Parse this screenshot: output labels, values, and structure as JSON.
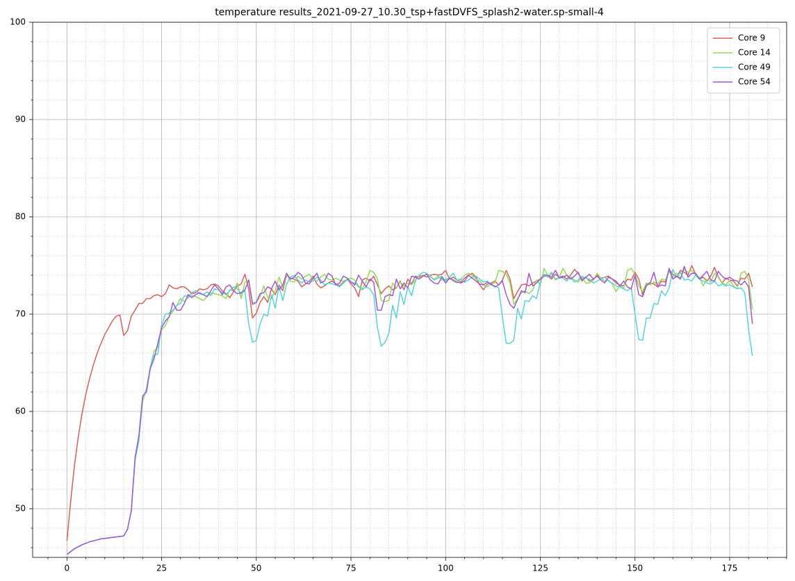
{
  "chart_data": {
    "type": "line",
    "title": "temperature results_2021-09-27_10.30_tsp+fastDVFS_splash2-water.sp-small-4",
    "xlim": [
      -9.05,
      190.05
    ],
    "ylim": [
      45,
      100
    ],
    "xticks": [
      0,
      25,
      50,
      75,
      100,
      125,
      150,
      175
    ],
    "yticks": [
      50,
      60,
      70,
      80,
      90,
      100
    ],
    "xminorticks": [
      -5,
      5,
      10,
      15,
      20,
      30,
      35,
      40,
      45,
      55,
      60,
      65,
      70,
      80,
      85,
      90,
      95,
      105,
      110,
      115,
      120,
      130,
      135,
      140,
      145,
      155,
      160,
      165,
      170,
      180,
      185,
      190
    ],
    "yminorticks": [
      46,
      48,
      52,
      54,
      56,
      58,
      62,
      64,
      66,
      68,
      72,
      74,
      76,
      78,
      82,
      84,
      86,
      88,
      92,
      94,
      96,
      98
    ],
    "grid": true,
    "legend": "upper right",
    "x": [
      0,
      1,
      2,
      3,
      4,
      5,
      6,
      7,
      8,
      9,
      10,
      11,
      12,
      13,
      14,
      15,
      16,
      17,
      18,
      19,
      20,
      21,
      22,
      23,
      24,
      25,
      26,
      27,
      28,
      29,
      30,
      31,
      32,
      33,
      34,
      35,
      36,
      37,
      38,
      39,
      40,
      41,
      42,
      43,
      44,
      45,
      46,
      47,
      48,
      49,
      50,
      51,
      52,
      53,
      54,
      55,
      56,
      57,
      58,
      59,
      60,
      61,
      62,
      63,
      64,
      65,
      66,
      67,
      68,
      69,
      70,
      71,
      72,
      73,
      74,
      75,
      76,
      77,
      78,
      79,
      80,
      81,
      82,
      83,
      84,
      85,
      86,
      87,
      88,
      89,
      90,
      91,
      92,
      93,
      94,
      95,
      96,
      97,
      98,
      99,
      100,
      101,
      102,
      103,
      104,
      105,
      106,
      107,
      108,
      109,
      110,
      111,
      112,
      113,
      114,
      115,
      116,
      117,
      118,
      119,
      120,
      121,
      122,
      123,
      124,
      125,
      126,
      127,
      128,
      129,
      130,
      131,
      132,
      133,
      134,
      135,
      136,
      137,
      138,
      139,
      140,
      141,
      142,
      143,
      144,
      145,
      146,
      147,
      148,
      149,
      150,
      151,
      152,
      153,
      154,
      155,
      156,
      157,
      158,
      159,
      160,
      161,
      162,
      163,
      164,
      165,
      166,
      167,
      168,
      169,
      170,
      171,
      172,
      173,
      174,
      175,
      176,
      177,
      178,
      179,
      180,
      181
    ],
    "series": [
      {
        "name": "Core 9",
        "color": "#db5f57",
        "values": [
          46.7,
          50.8,
          54.5,
          57.4,
          59.8,
          61.8,
          63.4,
          64.8,
          66.0,
          67.0,
          67.9,
          68.6,
          69.3,
          69.8,
          69.9,
          67.8,
          68.3,
          69.8,
          70.4,
          71.1,
          71.1,
          71.6,
          71.6,
          71.9,
          72.0,
          71.8,
          72.1,
          73.0,
          72.7,
          72.6,
          72.8,
          72.8,
          72.5,
          72.1,
          72.2,
          72.6,
          72.5,
          72.6,
          73.0,
          73.1,
          72.9,
          72.4,
          72.1,
          71.7,
          72.3,
          72.9,
          73.1,
          74.1,
          72.6,
          69.6,
          70.1,
          71.2,
          71.8,
          71.2,
          72.6,
          72.0,
          73.0,
          72.4,
          74.0,
          73.7,
          73.6,
          73.4,
          72.8,
          73.1,
          73.4,
          73.9,
          73.1,
          72.7,
          72.9,
          73.2,
          73.4,
          73.1,
          72.9,
          73.3,
          73.6,
          73.1,
          72.7,
          71.8,
          73.5,
          73.7,
          73.4,
          73.9,
          73.0,
          72.1,
          72.6,
          72.9,
          72.5,
          72.7,
          73.4,
          72.5,
          73.6,
          73.1,
          73.9,
          73.8,
          74.0,
          73.8,
          74.0,
          74.1,
          74.0,
          74.1,
          74.5,
          73.6,
          73.8,
          73.5,
          73.3,
          73.7,
          74.0,
          74.2,
          73.8,
          73.0,
          72.5,
          73.1,
          73.2,
          73.4,
          73.0,
          73.5,
          74.5,
          73.6,
          71.6,
          72.3,
          73.0,
          73.1,
          72.9,
          73.2,
          73.4,
          73.6,
          74.1,
          73.9,
          73.6,
          74.1,
          73.8,
          73.9,
          73.6,
          74.0,
          74.6,
          74.2,
          73.6,
          73.8,
          73.4,
          73.6,
          74.0,
          73.7,
          73.8,
          73.9,
          73.6,
          73.2,
          73.0,
          72.9,
          73.6,
          73.5,
          74.3,
          73.6,
          72.0,
          73.1,
          73.2,
          73.1,
          72.8,
          73.4,
          73.3,
          74.6,
          74.1,
          73.8,
          74.5,
          74.3,
          74.0,
          75.0,
          74.1,
          73.6,
          73.8,
          73.4,
          73.9,
          74.8,
          73.8,
          73.2,
          73.7,
          73.5,
          73.4,
          72.9,
          73.7,
          73.6,
          74.2,
          72.8
        ]
      },
      {
        "name": "Core 14",
        "color": "#91db57",
        "values": [
          45.3,
          45.6,
          45.9,
          46.1,
          46.3,
          46.45,
          46.6,
          46.7,
          46.8,
          46.9,
          46.95,
          47.0,
          47.05,
          47.1,
          47.15,
          47.2,
          47.9,
          49.8,
          55.2,
          57.2,
          61.0,
          62.4,
          64.5,
          66.2,
          66.6,
          68.4,
          68.8,
          69.8,
          70.3,
          70.9,
          71.6,
          71.3,
          71.7,
          71.9,
          71.8,
          71.6,
          71.4,
          71.8,
          72.2,
          72.1,
          72.0,
          71.9,
          71.6,
          72.5,
          72.4,
          73.2,
          71.6,
          73.3,
          73.5,
          71.2,
          71.2,
          71.8,
          72.9,
          71.7,
          71.6,
          72.4,
          73.8,
          72.7,
          74.1,
          73.4,
          73.3,
          73.9,
          73.6,
          73.9,
          74.1,
          73.6,
          73.4,
          73.8,
          74.1,
          73.6,
          73.5,
          73.7,
          73.5,
          73.4,
          73.6,
          73.7,
          73.5,
          72.9,
          72.6,
          73.3,
          74.5,
          74.3,
          73.6,
          71.4,
          71.3,
          71.4,
          73.2,
          72.7,
          73.3,
          72.9,
          73.2,
          73.0,
          73.5,
          74.0,
          73.9,
          74.1,
          73.8,
          73.6,
          73.9,
          73.5,
          73.6,
          73.7,
          73.4,
          73.2,
          73.6,
          74.0,
          74.2,
          74.0,
          73.6,
          73.4,
          73.0,
          72.8,
          73.1,
          73.2,
          74.5,
          74.4,
          74.1,
          73.2,
          71.0,
          71.6,
          72.2,
          72.4,
          72.1,
          72.5,
          73.5,
          73.0,
          74.7,
          73.9,
          74.3,
          73.5,
          73.8,
          74.7,
          74.0,
          73.8,
          73.5,
          73.3,
          73.8,
          73.2,
          73.2,
          73.5,
          74.2,
          73.7,
          73.4,
          73.5,
          73.1,
          72.3,
          73.0,
          72.6,
          74.5,
          74.7,
          74.1,
          72.9,
          72.3,
          73.2,
          73.0,
          73.3,
          73.1,
          73.6,
          73.5,
          74.4,
          73.8,
          74.2,
          73.7,
          74.6,
          74.3,
          74.5,
          74.0,
          73.8,
          72.9,
          73.6,
          73.3,
          74.2,
          73.9,
          73.2,
          73.0,
          73.5,
          72.9,
          72.6,
          74.2,
          74.4,
          73.5,
          70.5
        ]
      },
      {
        "name": "Core 49",
        "color": "#57d3db",
        "values": [
          45.3,
          45.6,
          45.9,
          46.1,
          46.3,
          46.45,
          46.6,
          46.7,
          46.8,
          46.9,
          46.95,
          47.0,
          47.05,
          47.1,
          47.15,
          47.2,
          47.9,
          49.8,
          55.0,
          57.0,
          61.5,
          62.2,
          64.6,
          65.8,
          65.9,
          68.9,
          70.0,
          70.1,
          70.4,
          70.9,
          71.1,
          71.9,
          71.8,
          72.2,
          72.4,
          72.1,
          72.0,
          72.3,
          71.9,
          72.6,
          72.5,
          72.2,
          72.0,
          72.4,
          72.8,
          72.6,
          72.1,
          72.4,
          69.0,
          67.1,
          67.3,
          69.0,
          70.0,
          69.8,
          72.0,
          70.6,
          72.9,
          71.4,
          73.1,
          73.8,
          74.0,
          73.5,
          73.2,
          73.5,
          73.3,
          73.4,
          73.8,
          73.5,
          73.0,
          73.2,
          73.1,
          73.0,
          72.8,
          73.2,
          73.5,
          73.3,
          73.2,
          72.8,
          72.5,
          72.8,
          72.6,
          72.0,
          68.6,
          66.7,
          67.1,
          68.0,
          70.9,
          69.6,
          72.3,
          71.0,
          72.8,
          71.9,
          73.4,
          74.0,
          74.3,
          74.2,
          73.9,
          73.5,
          73.7,
          73.9,
          73.4,
          73.8,
          74.2,
          73.5,
          73.6,
          73.3,
          73.5,
          73.8,
          73.9,
          73.6,
          73.3,
          73.4,
          73.0,
          72.9,
          72.7,
          69.7,
          67.0,
          67.0,
          67.3,
          70.6,
          69.5,
          71.4,
          71.3,
          71.9,
          71.6,
          73.3,
          74.1,
          73.8,
          74.2,
          73.6,
          73.8,
          73.7,
          73.4,
          73.8,
          73.3,
          73.5,
          73.9,
          73.7,
          73.6,
          73.2,
          73.4,
          73.6,
          73.8,
          73.4,
          73.2,
          72.9,
          72.8,
          72.6,
          72.4,
          72.7,
          70.0,
          67.4,
          67.3,
          69.6,
          69.6,
          71.1,
          71.0,
          72.4,
          71.9,
          72.7,
          74.6,
          73.8,
          74.3,
          73.5,
          73.6,
          73.4,
          74.0,
          73.6,
          73.4,
          73.2,
          73.1,
          73.4,
          72.9,
          73.1,
          72.9,
          73.0,
          72.8,
          72.6,
          72.7,
          72.2,
          68.4,
          65.7
        ]
      },
      {
        "name": "Core 54",
        "color": "#a157db",
        "values": [
          45.3,
          45.6,
          45.9,
          46.1,
          46.3,
          46.45,
          46.6,
          46.7,
          46.8,
          46.9,
          46.95,
          47.0,
          47.05,
          47.1,
          47.15,
          47.2,
          47.9,
          49.8,
          55.3,
          57.5,
          61.6,
          62.0,
          64.4,
          65.4,
          67.0,
          68.6,
          69.3,
          69.7,
          71.2,
          70.4,
          70.4,
          71.1,
          72.0,
          71.7,
          72.0,
          72.2,
          72.0,
          71.8,
          72.4,
          73.0,
          72.6,
          72.0,
          72.8,
          73.0,
          72.4,
          72.1,
          72.2,
          72.5,
          73.5,
          71.0,
          71.2,
          72.1,
          72.2,
          72.8,
          72.6,
          73.4,
          72.5,
          73.0,
          74.2,
          73.6,
          73.8,
          74.3,
          74.0,
          73.2,
          73.1,
          73.7,
          74.2,
          73.2,
          73.4,
          74.2,
          73.9,
          73.0,
          73.2,
          73.9,
          73.7,
          73.3,
          73.0,
          74.0,
          73.4,
          72.8,
          73.6,
          73.3,
          70.4,
          70.4,
          71.8,
          72.0,
          71.9,
          73.6,
          72.6,
          73.2,
          72.7,
          73.9,
          73.8,
          73.6,
          73.9,
          74.1,
          73.5,
          73.2,
          73.1,
          73.8,
          73.2,
          73.7,
          73.5,
          73.3,
          73.2,
          73.4,
          74.0,
          73.7,
          73.4,
          73.1,
          73.0,
          73.3,
          73.1,
          72.8,
          73.0,
          73.4,
          72.0,
          71.0,
          70.6,
          71.5,
          72.4,
          72.2,
          74.2,
          72.9,
          73.2,
          73.6,
          73.9,
          74.0,
          73.8,
          74.5,
          73.7,
          73.8,
          74.0,
          73.6,
          73.9,
          74.3,
          73.4,
          73.8,
          74.1,
          73.6,
          73.9,
          73.5,
          73.2,
          73.8,
          73.6,
          73.4,
          72.9,
          73.4,
          72.8,
          72.6,
          74.0,
          72.0,
          71.8,
          72.9,
          73.2,
          74.3,
          72.8,
          73.0,
          72.9,
          74.7,
          73.6,
          73.9,
          73.6,
          74.9,
          73.8,
          74.2,
          74.2,
          73.6,
          74.0,
          74.4,
          73.5,
          73.4,
          74.4,
          73.9,
          73.6,
          73.8,
          73.5,
          73.4,
          73.0,
          73.4,
          72.8,
          69.0
        ]
      }
    ]
  }
}
